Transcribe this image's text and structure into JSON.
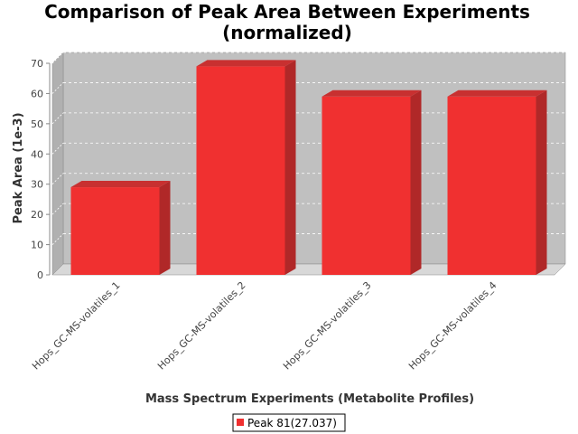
{
  "chart_data": {
    "type": "bar",
    "title_lines": [
      "Comparison of Peak Area Between Experiments",
      "(normalized)"
    ],
    "xlabel": "Mass Spectrum Experiments (Metabolite Profiles)",
    "ylabel": "Peak Area (1e-3)",
    "categories": [
      "Hops_GC-MS-volatiles_1",
      "Hops_GC-MS-volatiles_2",
      "Hops_GC-MS-volatiles_3",
      "Hops_GC-MS-volatiles_4"
    ],
    "series": [
      {
        "name": "Peak 81(27.037)",
        "values": [
          29,
          69,
          59,
          59
        ]
      }
    ],
    "ylim": [
      0,
      70
    ],
    "yticks": [
      0,
      10,
      20,
      30,
      40,
      50,
      60,
      70
    ],
    "grid": true,
    "legend_position": "bottom-center",
    "colors": {
      "bar_front": "#f03030",
      "bar_side": "#b02828",
      "bar_top": "#c83030",
      "plot_back": "#c0c0c0",
      "plot_floor": "#d8d8d8"
    }
  }
}
